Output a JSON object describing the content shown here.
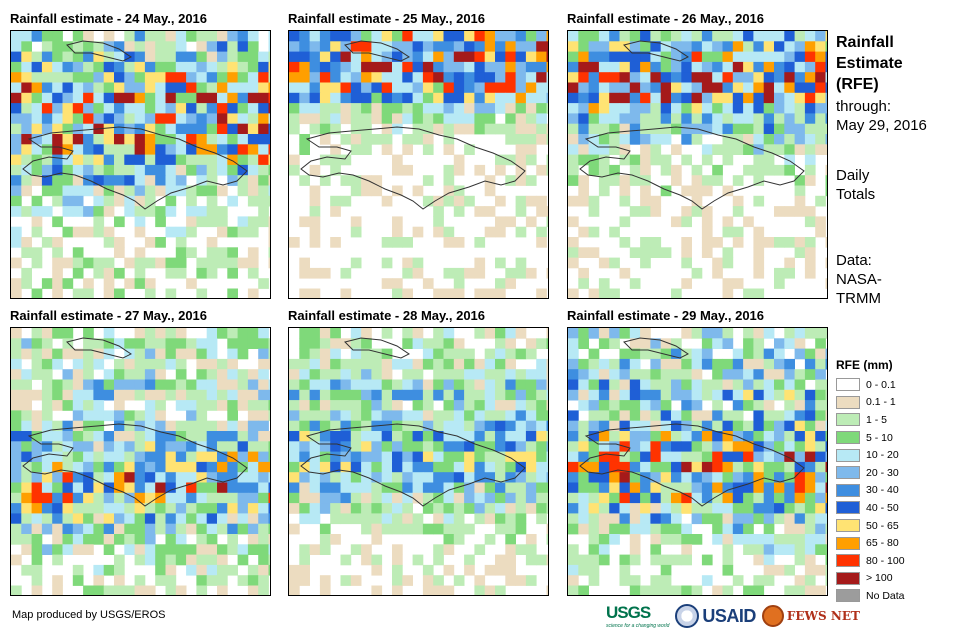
{
  "panels": [
    {
      "title": "Rainfall estimate - 24 May., 2016",
      "seed": 24,
      "wet": 0.55,
      "band": 0.35
    },
    {
      "title": "Rainfall estimate - 25 May., 2016",
      "seed": 25,
      "wet": 0.4,
      "band": 0.1
    },
    {
      "title": "Rainfall estimate - 26 May., 2016",
      "seed": 26,
      "wet": 0.45,
      "band": 0.2
    },
    {
      "title": "Rainfall estimate - 27 May., 2016",
      "seed": 27,
      "wet": 0.5,
      "band": 0.55
    },
    {
      "title": "Rainfall estimate - 28 May., 2016",
      "seed": 28,
      "wet": 0.42,
      "band": 0.45
    },
    {
      "title": "Rainfall estimate - 29 May., 2016",
      "seed": 29,
      "wet": 0.55,
      "band": 0.5
    }
  ],
  "side": {
    "title_lines": [
      "Rainfall",
      "Estimate",
      "(RFE)"
    ],
    "through_label": "through:",
    "through_date": "May 29, 2016",
    "period_lines": [
      "Daily",
      "Totals"
    ],
    "data_lines": [
      "Data:",
      "NASA-",
      "TRMM"
    ]
  },
  "legend": {
    "title": "RFE (mm)",
    "items": [
      {
        "label": "0 - 0.1",
        "color": "#ffffff"
      },
      {
        "label": "0.1 - 1",
        "color": "#ecdcc0"
      },
      {
        "label": "1 - 5",
        "color": "#bdecb6"
      },
      {
        "label": "5 - 10",
        "color": "#7fd97a"
      },
      {
        "label": "10 - 20",
        "color": "#b7e9f5"
      },
      {
        "label": "20 - 30",
        "color": "#7eb9ec"
      },
      {
        "label": "30 - 40",
        "color": "#3e8ee0"
      },
      {
        "label": "40 - 50",
        "color": "#1f5fd6"
      },
      {
        "label": "50 - 65",
        "color": "#ffe373"
      },
      {
        "label": "65 - 80",
        "color": "#ff9f00"
      },
      {
        "label": "80 - 100",
        "color": "#ff3300"
      },
      {
        "label": "> 100",
        "color": "#a51a1a"
      },
      {
        "label": "No Data",
        "color": "#9c9c9c"
      }
    ]
  },
  "credit": "Map produced by USGS/EROS",
  "logos": {
    "usgs": "USGS",
    "usgs_tagline": "science for a changing world",
    "usaid": "USAID",
    "fews": "FEWS NET"
  }
}
